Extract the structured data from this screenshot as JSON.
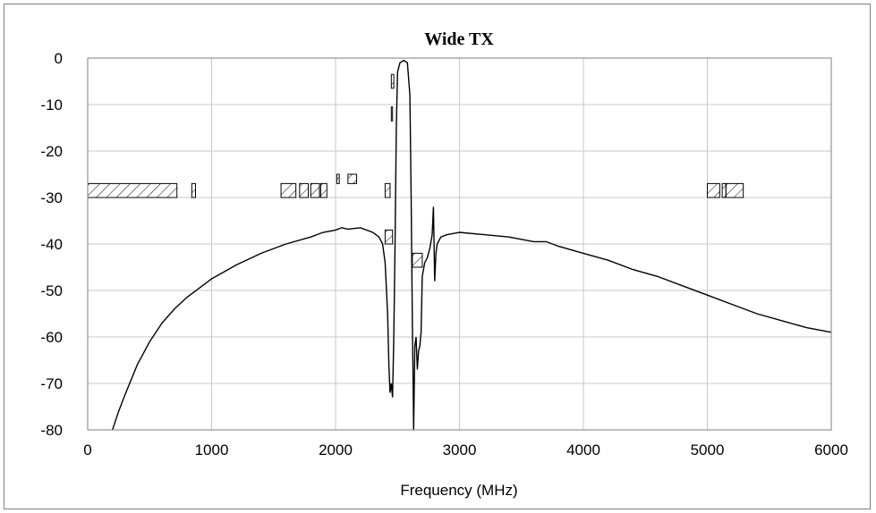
{
  "chart_data": {
    "type": "line",
    "title": "Wide TX",
    "xlabel": "Frequency (MHz)",
    "ylabel": "",
    "xlim": [
      0,
      6000
    ],
    "ylim": [
      -80,
      0
    ],
    "grid": true,
    "x_ticks": [
      0,
      1000,
      2000,
      3000,
      4000,
      5000,
      6000
    ],
    "y_ticks": [
      0,
      -10,
      -20,
      -30,
      -40,
      -50,
      -60,
      -70,
      -80
    ],
    "x_tick_labels": [
      "0",
      "1000",
      "2000",
      "3000",
      "4000",
      "5000",
      "6000"
    ],
    "y_tick_labels": [
      "0",
      "-10",
      "-20",
      "-30",
      "-40",
      "-50",
      "-60",
      "-70",
      "-80"
    ],
    "series": [
      {
        "x": [
          200,
          250,
          300,
          400,
          500,
          600,
          700,
          800,
          900,
          1000,
          1200,
          1400,
          1600,
          1800,
          1900,
          2000,
          2050,
          2100,
          2200,
          2300,
          2350,
          2380,
          2400,
          2420,
          2430,
          2440,
          2450,
          2460,
          2470,
          2480,
          2490,
          2500,
          2520,
          2550,
          2580,
          2600,
          2610,
          2620,
          2625,
          2630,
          2640,
          2650,
          2660,
          2670,
          2680,
          2690,
          2700,
          2720,
          2740,
          2760,
          2780,
          2790,
          2800,
          2810,
          2820,
          2850,
          2900,
          3000,
          3200,
          3400,
          3600,
          3700,
          3800,
          4000,
          4200,
          4400,
          4600,
          4800,
          5000,
          5200,
          5400,
          5600,
          5800,
          6000
        ],
        "values": [
          -80,
          -76,
          -72.5,
          -66,
          -61,
          -57,
          -54,
          -51.5,
          -49.5,
          -47.5,
          -44.5,
          -42,
          -40,
          -38.5,
          -37.5,
          -37,
          -36.5,
          -36.8,
          -36.5,
          -37.5,
          -38.5,
          -40,
          -44,
          -55,
          -66,
          -72,
          -70,
          -73,
          -60,
          -40,
          -15,
          -3,
          -1,
          -0.5,
          -1,
          -8,
          -30,
          -58,
          -68,
          -80,
          -62,
          -60,
          -67,
          -63,
          -62,
          -59,
          -47,
          -44,
          -43,
          -41,
          -38,
          -32,
          -48,
          -42,
          -40,
          -38.5,
          -38,
          -37.5,
          -38,
          -38.5,
          -39.5,
          -39.5,
          -40.5,
          -42,
          -43.5,
          -45.5,
          -47,
          -49,
          -51,
          -53,
          -55,
          -56.5,
          -58,
          -59
        ]
      }
    ],
    "mask_boxes": [
      {
        "x0": 0,
        "x1": 720,
        "y": -30,
        "y_top": -27
      },
      {
        "x0": 840,
        "x1": 870,
        "y": -30,
        "y_top": -27
      },
      {
        "x0": 1560,
        "x1": 1680,
        "y": -30,
        "y_top": -27
      },
      {
        "x0": 1710,
        "x1": 1780,
        "y": -30,
        "y_top": -27
      },
      {
        "x0": 1800,
        "x1": 1870,
        "y": -30,
        "y_top": -27
      },
      {
        "x0": 1880,
        "x1": 1930,
        "y": -30,
        "y_top": -27
      },
      {
        "x0": 2010,
        "x1": 2030,
        "y": -27,
        "y_top": -25
      },
      {
        "x0": 2100,
        "x1": 2170,
        "y": -27,
        "y_top": -25
      },
      {
        "x0": 2400,
        "x1": 2440,
        "y": -30,
        "y_top": -27
      },
      {
        "x0": 2400,
        "x1": 2460,
        "y": -40,
        "y_top": -37
      },
      {
        "x0": 2450,
        "x1": 2460,
        "y": -13.5,
        "y_top": -10.5
      },
      {
        "x0": 2450,
        "x1": 2470,
        "y": -6.5,
        "y_top": -3.5
      },
      {
        "x0": 2620,
        "x1": 2700,
        "y": -45,
        "y_top": -42
      },
      {
        "x0": 5000,
        "x1": 5100,
        "y": -30,
        "y_top": -27
      },
      {
        "x0": 5120,
        "x1": 5150,
        "y": -30,
        "y_top": -27
      },
      {
        "x0": 5150,
        "x1": 5290,
        "y": -30,
        "y_top": -27
      }
    ]
  }
}
